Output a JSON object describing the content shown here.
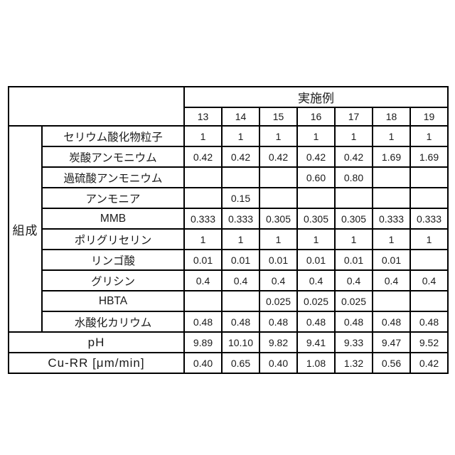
{
  "table": {
    "examples_header": "実施例",
    "column_numbers": [
      "13",
      "14",
      "15",
      "16",
      "17",
      "18",
      "19"
    ],
    "composition_label": "組成",
    "composition_rows": [
      {
        "label": "セリウム酸化物粒子",
        "values": [
          "1",
          "1",
          "1",
          "1",
          "1",
          "1",
          "1"
        ]
      },
      {
        "label": "炭酸アンモニウム",
        "values": [
          "0.42",
          "0.42",
          "0.42",
          "0.42",
          "0.42",
          "1.69",
          "1.69"
        ]
      },
      {
        "label": "過硫酸アンモニウム",
        "values": [
          "",
          "",
          "",
          "0.60",
          "0.80",
          "",
          ""
        ]
      },
      {
        "label": "アンモニア",
        "values": [
          "",
          "0.15",
          "",
          "",
          "",
          "",
          ""
        ]
      },
      {
        "label": "MMB",
        "values": [
          "0.333",
          "0.333",
          "0.305",
          "0.305",
          "0.305",
          "0.333",
          "0.333"
        ]
      },
      {
        "label": "ポリグリセリン",
        "values": [
          "1",
          "1",
          "1",
          "1",
          "1",
          "1",
          "1"
        ]
      },
      {
        "label": "リンゴ酸",
        "values": [
          "0.01",
          "0.01",
          "0.01",
          "0.01",
          "0.01",
          "0.01",
          ""
        ]
      },
      {
        "label": "グリシン",
        "values": [
          "0.4",
          "0.4",
          "0.4",
          "0.4",
          "0.4",
          "0.4",
          "0.4"
        ]
      },
      {
        "label": "HBTA",
        "values": [
          "",
          "",
          "0.025",
          "0.025",
          "0.025",
          "",
          ""
        ]
      },
      {
        "label": "水酸化カリウム",
        "values": [
          "0.48",
          "0.48",
          "0.48",
          "0.48",
          "0.48",
          "0.48",
          "0.48"
        ]
      }
    ],
    "summary_rows": [
      {
        "label": "pH",
        "values": [
          "9.89",
          "10.10",
          "9.82",
          "9.41",
          "9.33",
          "9.47",
          "9.52"
        ]
      },
      {
        "label": "Cu-RR [μm/min]",
        "values": [
          "0.40",
          "0.65",
          "0.40",
          "1.08",
          "1.32",
          "0.56",
          "0.42"
        ]
      }
    ]
  }
}
